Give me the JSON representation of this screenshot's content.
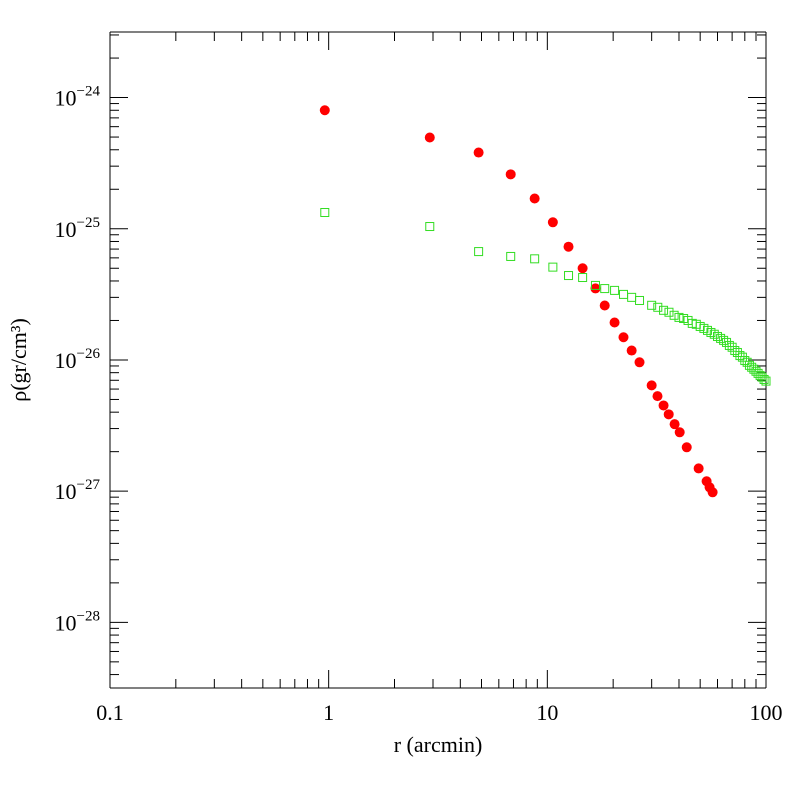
{
  "chart_data": {
    "type": "scatter",
    "x_label": "r  (arcmin)",
    "y_label": "ρ(gr/cm³)",
    "xscale": "log",
    "yscale": "log",
    "xlim": [
      0.1,
      100
    ],
    "ylim": [
      3.16e-29,
      3.16e-24
    ],
    "xticks": [
      0.1,
      1,
      10,
      100
    ],
    "yticks": [
      {
        "value": 1e-28,
        "label": "10−28"
      },
      {
        "value": 1e-27,
        "label": "10−27"
      },
      {
        "value": 1e-26,
        "label": "10−26"
      },
      {
        "value": 1e-25,
        "label": "10−25"
      },
      {
        "value": 1e-24,
        "label": "10−24"
      }
    ],
    "minor_ticks": true,
    "series": [
      {
        "marker": "filled-circle",
        "color": "#ff0000",
        "x": [
          0.96,
          2.9,
          4.85,
          6.8,
          8.75,
          10.6,
          12.5,
          14.5,
          16.6,
          18.3,
          20.3,
          22.3,
          24.3,
          26.4,
          30.0,
          31.9,
          34.0,
          35.9,
          38.2,
          40.3,
          43.4,
          49.2,
          53.5,
          55.2,
          57.0
        ],
        "values": [
          8e-25,
          4.96e-25,
          3.81e-25,
          2.6e-25,
          1.7e-25,
          1.12e-25,
          7.3e-26,
          5e-26,
          3.51e-26,
          2.6e-26,
          1.93e-26,
          1.49e-26,
          1.18e-26,
          9.6e-27,
          6.4e-27,
          5.3e-27,
          4.5e-27,
          3.85e-27,
          3.24e-27,
          2.81e-27,
          2.16e-27,
          1.49e-27,
          1.19e-27,
          1.07e-27,
          9.8e-28
        ]
      },
      {
        "marker": "open-square",
        "color": "#33dd22",
        "x": [
          0.96,
          2.9,
          4.85,
          6.8,
          8.75,
          10.6,
          12.5,
          14.5,
          16.6,
          18.3,
          20.3,
          22.3,
          24.3,
          26.4,
          30,
          32,
          34,
          36,
          38,
          40,
          42,
          44,
          46,
          48,
          50,
          52,
          54,
          56,
          58,
          60,
          62,
          64,
          66,
          68,
          70,
          72,
          74,
          76,
          78,
          80,
          82,
          84,
          86,
          88,
          90,
          92,
          94,
          96,
          98,
          100
        ],
        "values": [
          1.33e-25,
          1.04e-25,
          6.7e-26,
          6.15e-26,
          5.9e-26,
          5.1e-26,
          4.4e-26,
          4.25e-26,
          3.7e-26,
          3.5e-26,
          3.39e-26,
          3.16e-26,
          3e-26,
          2.84e-26,
          2.61e-26,
          2.52e-26,
          2.39e-26,
          2.31e-26,
          2.19e-26,
          2.11e-26,
          2.07e-26,
          2e-26,
          1.9e-26,
          1.87e-26,
          1.8e-26,
          1.74e-26,
          1.68e-26,
          1.62e-26,
          1.57e-26,
          1.51e-26,
          1.46e-26,
          1.41e-26,
          1.36e-26,
          1.29e-26,
          1.25e-26,
          1.18e-26,
          1.14e-26,
          1.08e-26,
          1.05e-26,
          9.9e-27,
          9.6e-27,
          9.1e-27,
          8.8e-27,
          8.5e-27,
          8.2e-27,
          7.9e-27,
          7.6e-27,
          7.4e-27,
          7.1e-27,
          6.9e-27
        ]
      }
    ]
  }
}
